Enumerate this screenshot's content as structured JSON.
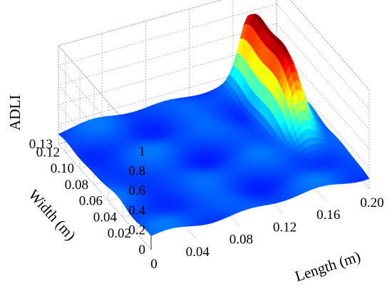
{
  "chart_data": {
    "type": "surface",
    "title": "",
    "xlabel": "Length (m)",
    "ylabel": "Width (m)",
    "zlabel": "ADLI",
    "xlim": [
      0,
      0.2
    ],
    "ylim": [
      0,
      0.13
    ],
    "zlim": [
      0,
      1
    ],
    "x_ticks": [
      "0",
      "0.04",
      "0.08",
      "0.12",
      "0.16",
      "0.20"
    ],
    "x_tick_values": [
      0,
      0.04,
      0.08,
      0.12,
      0.16,
      0.2
    ],
    "y_ticks": [
      "0.02",
      "0.04",
      "0.06",
      "0.08",
      "0.10",
      "0.12",
      "0.13"
    ],
    "y_tick_values": [
      0.02,
      0.04,
      0.06,
      0.08,
      0.1,
      0.12,
      0.13
    ],
    "z_ticks": [
      "0",
      "0.2",
      "0.4",
      "0.6",
      "0.8",
      "1"
    ],
    "z_tick_values": [
      0,
      0.2,
      0.4,
      0.6,
      0.8,
      1
    ],
    "grid": true,
    "colormap": "jet",
    "surface": {
      "x_range": [
        0,
        0.2
      ],
      "y_range": [
        0,
        0.13
      ],
      "baseline_z": 0.12,
      "noise_amplitude": 0.04,
      "peak": {
        "center_x": 0.175,
        "center_y": 0.1,
        "spread_x": 0.009,
        "spread_y": 0.028,
        "max_z": 0.84
      }
    },
    "colors": {
      "low": "#0000ff",
      "mid": "#00ffff",
      "high": "#ff0000"
    }
  }
}
